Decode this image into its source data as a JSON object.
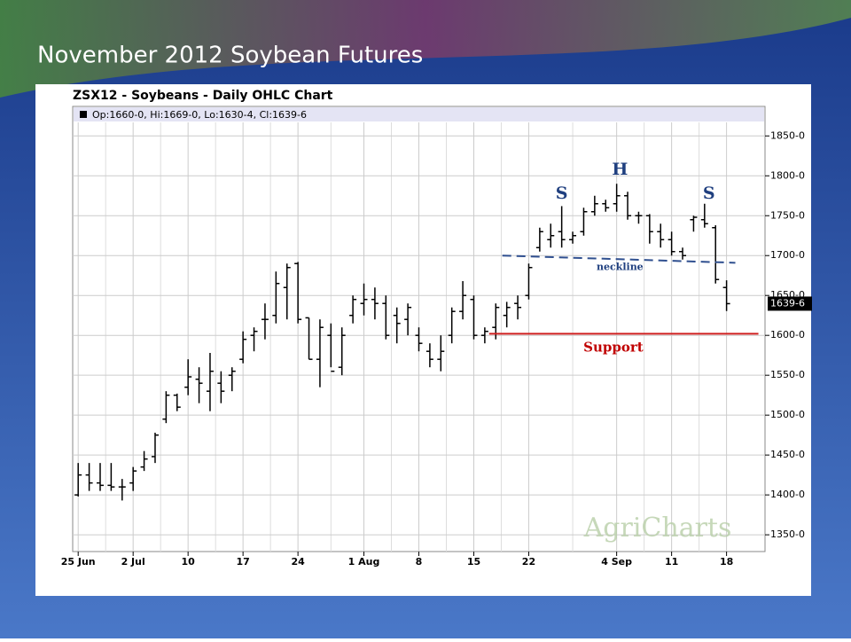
{
  "slide_title": "November 2012 Soybean Futures",
  "chart_data": {
    "type": "ohlc",
    "title": "ZSX12 - Soybeans - Daily OHLC Chart",
    "legend": "Op:1660-0, Hi:1669-0, Lo:1630-4, Cl:1639-6",
    "last_price_label": "1639-6",
    "last_price": 1639.75,
    "watermark": "AgriCharts",
    "color": "#000000",
    "grid": true,
    "xlim": [
      -0.5,
      62.5
    ],
    "ylim": [
      1329,
      1887
    ],
    "xticks": [
      {
        "value": 0,
        "label": "25 Jun"
      },
      {
        "value": 5,
        "label": "2 Jul"
      },
      {
        "value": 10,
        "label": "10"
      },
      {
        "value": 15,
        "label": "17"
      },
      {
        "value": 20,
        "label": "24"
      },
      {
        "value": 26,
        "label": "1 Aug"
      },
      {
        "value": 31,
        "label": "8"
      },
      {
        "value": 36,
        "label": "15"
      },
      {
        "value": 41,
        "label": "22"
      },
      {
        "value": 49,
        "label": "4 Sep"
      },
      {
        "value": 54,
        "label": "11"
      },
      {
        "value": 59,
        "label": "18"
      }
    ],
    "yticks": [
      {
        "value": 1350,
        "label": "1350-0"
      },
      {
        "value": 1400,
        "label": "1400-0"
      },
      {
        "value": 1450,
        "label": "1450-0"
      },
      {
        "value": 1500,
        "label": "1500-0"
      },
      {
        "value": 1550,
        "label": "1550-0"
      },
      {
        "value": 1600,
        "label": "1600-0"
      },
      {
        "value": 1650,
        "label": "1650-0"
      },
      {
        "value": 1700,
        "label": "1700-0"
      },
      {
        "value": 1750,
        "label": "1750-0"
      },
      {
        "value": 1800,
        "label": "1800-0"
      },
      {
        "value": 1850,
        "label": "1850-0"
      }
    ],
    "open": [
      1400,
      1425,
      1415,
      1412,
      1410,
      1415,
      1435,
      1448,
      1495,
      1525,
      1535,
      1545,
      1530,
      1540,
      1550,
      1570,
      1600,
      1620,
      1625,
      1660,
      1690,
      1622,
      1570,
      1600,
      1560,
      1625,
      1640,
      1645,
      1640,
      1625,
      1620,
      1600,
      1580,
      1570,
      1600,
      1630,
      1645,
      1600,
      1610,
      1625,
      1640,
      1650,
      1710,
      1720,
      1730,
      1720,
      1730,
      1755,
      1765,
      1765,
      1775,
      1750,
      1750,
      1730,
      1720,
      1705,
      1745,
      1745,
      1735,
      1660
    ],
    "high": [
      1440,
      1440,
      1440,
      1440,
      1420,
      1435,
      1455,
      1478,
      1530,
      1527,
      1570,
      1560,
      1578,
      1555,
      1560,
      1605,
      1610,
      1640,
      1680,
      1690,
      1692,
      1622,
      1620,
      1615,
      1610,
      1650,
      1665,
      1660,
      1650,
      1635,
      1640,
      1610,
      1590,
      1600,
      1635,
      1668,
      1650,
      1610,
      1640,
      1642,
      1650,
      1690,
      1735,
      1740,
      1762,
      1730,
      1760,
      1775,
      1770,
      1790,
      1780,
      1755,
      1752,
      1740,
      1730,
      1710,
      1750,
      1765,
      1738,
      1669
    ],
    "low": [
      1398,
      1405,
      1405,
      1405,
      1393,
      1405,
      1430,
      1440,
      1490,
      1505,
      1525,
      1515,
      1505,
      1515,
      1530,
      1565,
      1580,
      1595,
      1615,
      1620,
      1615,
      1570,
      1535,
      1560,
      1550,
      1615,
      1625,
      1620,
      1595,
      1590,
      1600,
      1580,
      1560,
      1555,
      1590,
      1620,
      1595,
      1590,
      1595,
      1610,
      1620,
      1645,
      1705,
      1710,
      1710,
      1715,
      1725,
      1750,
      1755,
      1755,
      1745,
      1740,
      1715,
      1710,
      1700,
      1695,
      1730,
      1735,
      1665,
      1630.5
    ],
    "close": [
      1425,
      1415,
      1412,
      1410,
      1410,
      1430,
      1445,
      1475,
      1525,
      1510,
      1548,
      1540,
      1555,
      1530,
      1555,
      1595,
      1605,
      1620,
      1665,
      1685,
      1620,
      1570,
      1610,
      1555,
      1600,
      1645,
      1645,
      1640,
      1600,
      1615,
      1635,
      1590,
      1570,
      1580,
      1630,
      1650,
      1600,
      1605,
      1635,
      1635,
      1635,
      1685,
      1730,
      1725,
      1720,
      1725,
      1755,
      1765,
      1760,
      1775,
      1750,
      1750,
      1730,
      1720,
      1705,
      1700,
      1748,
      1740,
      1670,
      1639.75
    ],
    "annotations": [
      {
        "text": "S",
        "x": 44,
        "y": 1777,
        "color": "#1f3f7f"
      },
      {
        "text": "H",
        "x": 49.3,
        "y": 1807,
        "color": "#1f3f7f"
      },
      {
        "text": "S",
        "x": 57.4,
        "y": 1777,
        "color": "#1f3f7f"
      },
      {
        "text": "neckline",
        "x": 49.3,
        "y": 1685,
        "color": "#1f3f7f"
      },
      {
        "text": "Support",
        "x": 48.7,
        "y": 1584,
        "color": "#c00000"
      }
    ],
    "neckline": {
      "from": [
        38.6,
        1700
      ],
      "to": [
        59.8,
        1691
      ],
      "color": "#2f4f8f"
    },
    "support": {
      "from": [
        37.4,
        1602
      ],
      "to": [
        61.9,
        1602
      ],
      "color": "#d02020"
    }
  }
}
